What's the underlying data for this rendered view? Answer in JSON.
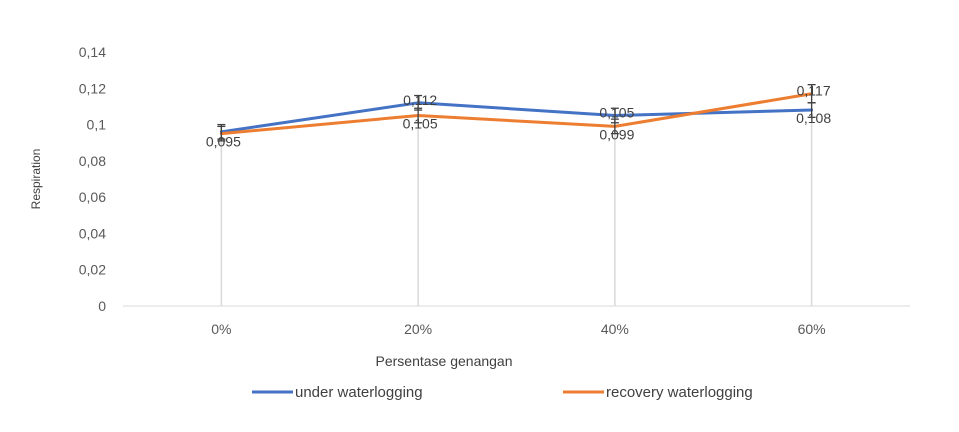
{
  "chart_data": {
    "type": "line",
    "title": "",
    "xlabel": "Persentase genangan",
    "ylabel": "Respiration",
    "categories": [
      "0%",
      "20%",
      "40%",
      "60%"
    ],
    "y_ticks": [
      "0",
      "0,02",
      "0,04",
      "0,06",
      "0,08",
      "0,1",
      "0,12",
      "0,14"
    ],
    "ylim": [
      0,
      0.14
    ],
    "grid": "vertical drop lines at categories",
    "legend_position": "bottom",
    "series": [
      {
        "name": "under waterlogging",
        "color": "#4472C4",
        "values": [
          0.096,
          0.112,
          0.105,
          0.108
        ],
        "labels": [
          "",
          "0,112",
          "0,105",
          "0,108"
        ],
        "error": [
          0.004,
          0.004,
          0.004,
          0.004
        ]
      },
      {
        "name": "recovery waterlogging",
        "color": "#ED7D31",
        "values": [
          0.095,
          0.105,
          0.099,
          0.117
        ],
        "labels": [
          "0,095",
          "0,105",
          "0,099",
          "0,117"
        ],
        "error": [
          0.004,
          0.004,
          0.004,
          0.005
        ]
      }
    ]
  }
}
